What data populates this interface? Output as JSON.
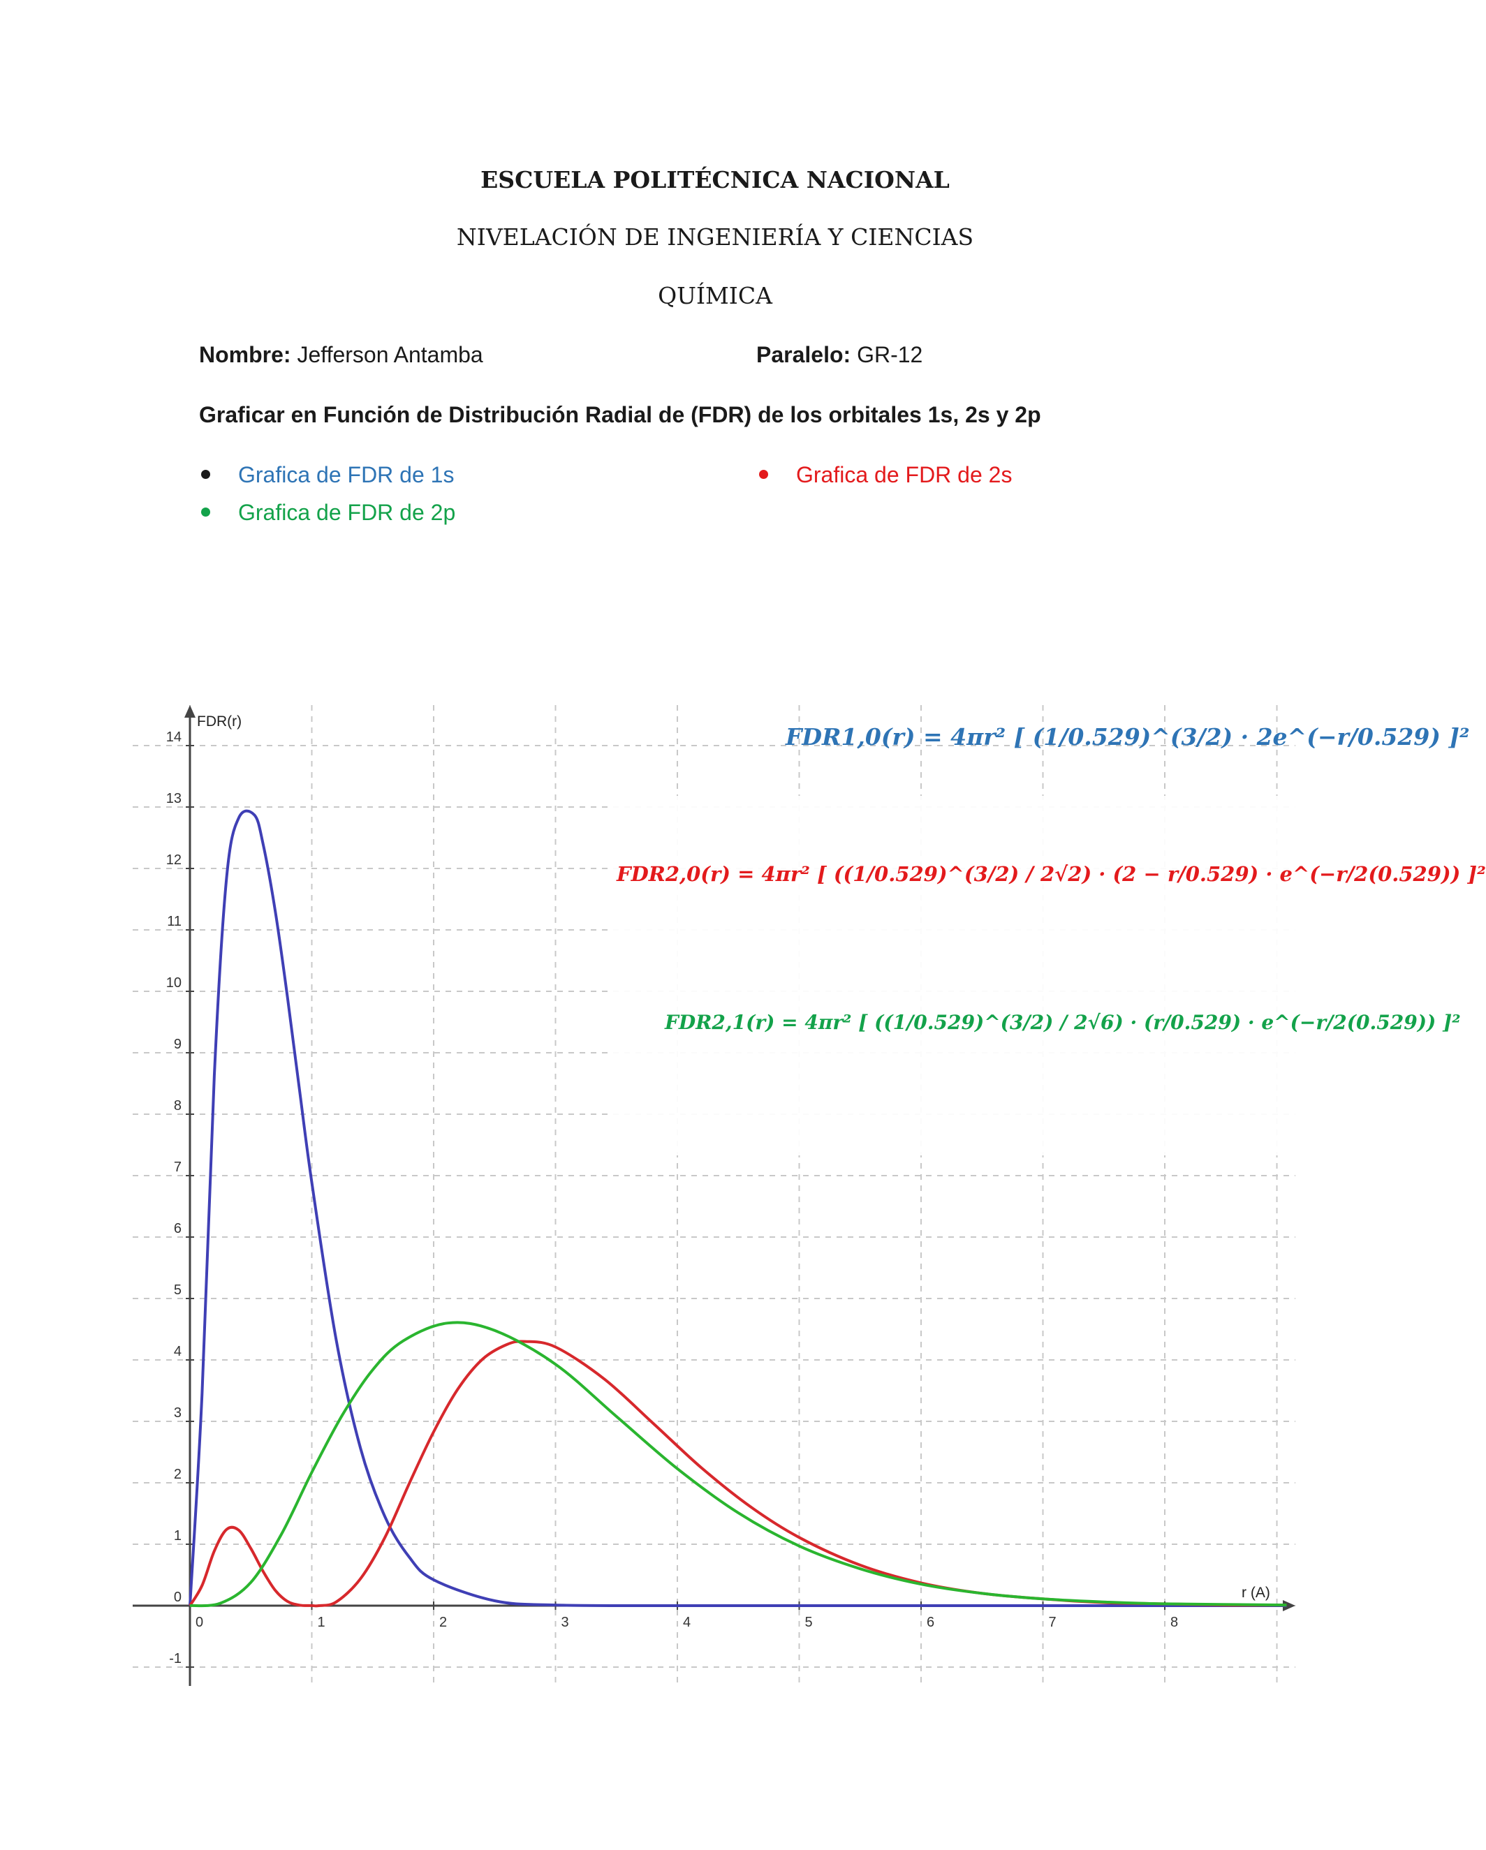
{
  "header": {
    "institution": "ESCUELA POLITÉCNICA NACIONAL",
    "program": "NIVELACIÓN DE INGENIERÍA Y CIENCIAS",
    "subject": "QUÍMICA"
  },
  "info": {
    "name_label": "Nombre:",
    "name_value": "Jefferson Antamba",
    "section_label": "Paralelo:",
    "section_value": "GR-12"
  },
  "task": "Graficar en Función de Distribución Radial de (FDR) de los orbitales 1s, 2s y 2p",
  "bullets": [
    {
      "text": "Grafica de FDR de 1s",
      "color": "#2e74b5"
    },
    {
      "text": "Grafica de FDR de 2s",
      "color": "#e31a1c"
    },
    {
      "text": "Grafica de FDR de 2p",
      "color": "#13a24a"
    }
  ],
  "formulas": [
    {
      "lhs": "FDR1,0(r) = 4πr²",
      "rhs": "[ (1/0.529)^(3/2) · 2e^(−r/0.529) ]²",
      "color": "#2e74b5"
    },
    {
      "lhs": "FDR2,0(r) = 4πr²",
      "rhs": "[ ((1/0.529)^(3/2) / 2√2) · (2 − r/0.529) · e^(−r/2(0.529)) ]²",
      "color": "#e31a1c"
    },
    {
      "lhs": "FDR2,1(r) = 4πr²",
      "rhs": "[ ((1/0.529)^(3/2) / 2√6) · (r/0.529) · e^(−r/2(0.529)) ]²",
      "color": "#13a24a"
    }
  ],
  "chart_data": {
    "type": "line",
    "ylabel": "FDR(r)",
    "xlabel": "r (A)",
    "xlim": [
      -0.5,
      9.0
    ],
    "ylim": [
      -1.3,
      14.5
    ],
    "xticks": [
      0,
      1,
      2,
      3,
      4,
      5,
      6,
      7,
      8
    ],
    "yticks": [
      -1,
      0,
      1,
      2,
      3,
      4,
      5,
      6,
      7,
      8,
      9,
      10,
      11,
      12,
      13,
      14
    ],
    "grid": true,
    "series": [
      {
        "orbital": "1s",
        "color": "#3f3fb5",
        "x": [
          0,
          0.1,
          0.2,
          0.3,
          0.4,
          0.529,
          0.6,
          0.7,
          0.8,
          0.9,
          1.0,
          1.2,
          1.4,
          1.6,
          1.8,
          2.0,
          2.5,
          3.0,
          4.0,
          5.0,
          9.0
        ],
        "y": [
          0,
          3.46,
          8.63,
          11.84,
          12.82,
          12.87,
          12.4,
          11.31,
          9.91,
          8.38,
          6.89,
          4.33,
          2.56,
          1.45,
          0.79,
          0.42,
          0.08,
          0.01,
          0,
          0,
          0
        ]
      },
      {
        "orbital": "2s",
        "color": "#d7282c",
        "x": [
          0,
          0.1,
          0.2,
          0.3,
          0.4,
          0.5,
          0.6,
          0.7,
          0.8,
          0.9,
          1.0,
          1.058,
          1.2,
          1.4,
          1.6,
          1.8,
          2.0,
          2.2,
          2.4,
          2.6,
          2.75,
          3.0,
          3.4,
          3.8,
          4.2,
          4.6,
          5.0,
          5.5,
          6.0,
          6.5,
          7.0,
          7.5,
          8.0,
          8.5,
          9.0
        ],
        "y": [
          0,
          0.33,
          0.89,
          1.24,
          1.23,
          0.93,
          0.56,
          0.25,
          0.07,
          0.008,
          0.001,
          0,
          0.06,
          0.44,
          1.11,
          1.99,
          2.83,
          3.53,
          4.01,
          4.25,
          4.3,
          4.21,
          3.69,
          2.97,
          2.24,
          1.61,
          1.11,
          0.66,
          0.37,
          0.2,
          0.11,
          0.05,
          0.03,
          0.01,
          0.01
        ]
      },
      {
        "orbital": "2p",
        "color": "#2ab52f",
        "x": [
          0,
          0.25,
          0.5,
          0.75,
          1.0,
          1.25,
          1.5,
          1.75,
          2.116,
          2.5,
          3.0,
          3.5,
          4.0,
          4.5,
          5.0,
          5.5,
          6.0,
          6.5,
          7.0,
          7.5,
          8.0,
          9.0
        ],
        "y": [
          0,
          0.04,
          0.38,
          1.16,
          2.17,
          3.1,
          3.84,
          4.31,
          4.6,
          4.48,
          3.93,
          3.08,
          2.23,
          1.51,
          0.97,
          0.6,
          0.35,
          0.2,
          0.11,
          0.06,
          0.03,
          0.01
        ]
      }
    ]
  }
}
